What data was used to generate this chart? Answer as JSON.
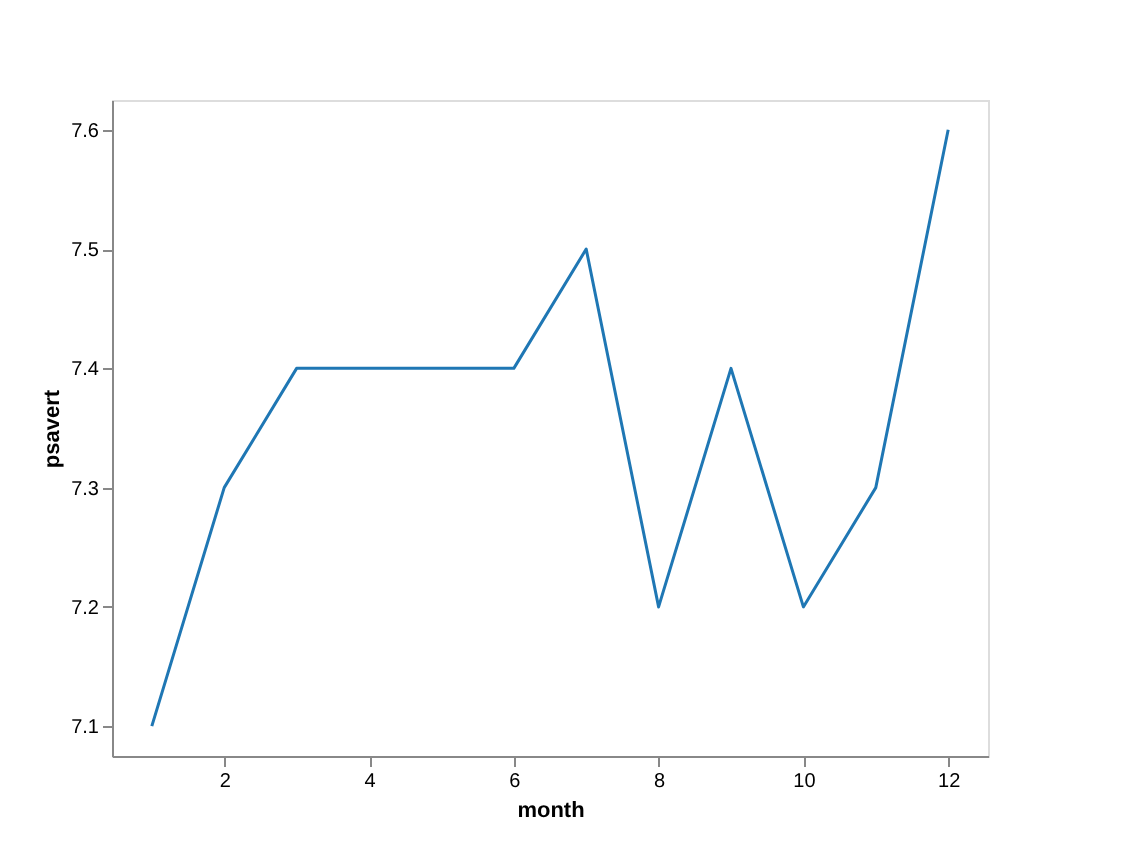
{
  "chart_data": {
    "type": "line",
    "xlabel": "month",
    "ylabel": "psavert",
    "x": [
      1,
      2,
      3,
      4,
      5,
      6,
      7,
      8,
      9,
      10,
      11,
      12
    ],
    "series": [
      {
        "color": "#1f77b4",
        "values": [
          7.1,
          7.3,
          7.4,
          7.4,
          7.4,
          7.4,
          7.5,
          7.2,
          7.4,
          7.2,
          7.3,
          7.6
        ]
      }
    ],
    "xlim": [
      0.45,
      12.55
    ],
    "ylim": [
      7.075,
      7.625
    ],
    "xticks": [
      2,
      4,
      6,
      8,
      10,
      12
    ],
    "yticks": [
      7.1,
      7.2,
      7.3,
      7.4,
      7.5,
      7.6
    ],
    "grid": false
  }
}
